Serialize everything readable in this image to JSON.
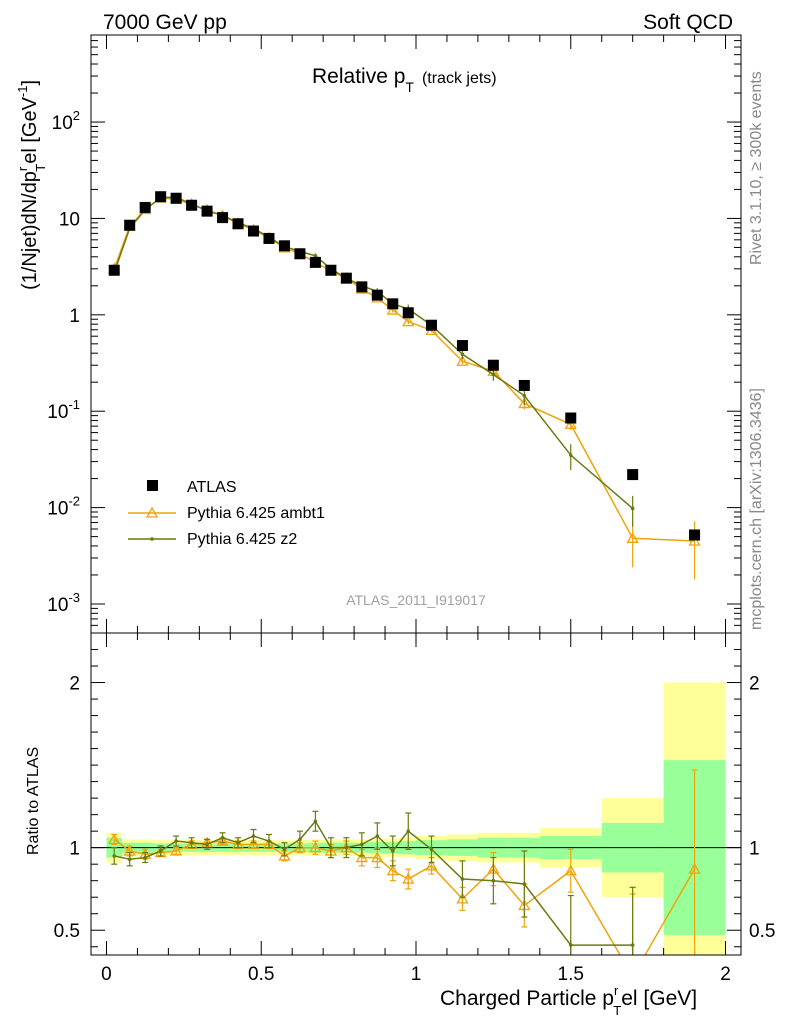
{
  "header": {
    "left": "7000 GeV pp",
    "right": "Soft QCD"
  },
  "side_labels": {
    "rivet": "Rivet 3.1.10, ≥ 300k events",
    "source": "mcplots.cern.ch [arXiv:1306.3436]"
  },
  "chart_data": {
    "type": "line",
    "title": "Relative p_T (track jets)",
    "title_main": "Relative p",
    "title_sub": "T",
    "title_note": "(track jets)",
    "analysis": "ATLAS_2011_I919017",
    "xlabel": "Charged Particle p_T^rel [GeV]",
    "xlabel_main": "Charged Particle p",
    "xlabel_sub": "T",
    "xlabel_sup": "r",
    "xlabel_tail": "el [GeV]",
    "ylabel": "(1/Njet)dN/dp_T^rel [GeV^-1]",
    "ylabel_main": "(1/Njet)dN/dp",
    "ylabel_sub": "T",
    "ylabel_sup": "r",
    "ylabel_tail": "el [GeV",
    "ylabel_exp": "-1",
    "ylabel_close": "]",
    "ratio_ylabel": "Ratio to ATLAS",
    "xlim": [
      -0.05,
      2.05
    ],
    "ylim": [
      0.0005,
      800
    ],
    "yscale": "log",
    "ratio_ylim": [
      0.35,
      2.3
    ],
    "x_ticks": [
      "0",
      "0.5",
      "1",
      "1.5",
      "2"
    ],
    "y_ticks": [
      {
        "base": "10",
        "exp": "-3"
      },
      {
        "base": "10",
        "exp": "-2"
      },
      {
        "base": "10",
        "exp": "-1"
      },
      {
        "base": "1",
        "exp": ""
      },
      {
        "base": "10",
        "exp": ""
      },
      {
        "base": "10",
        "exp": "2"
      }
    ],
    "ratio_ticks": [
      "0.5",
      "1",
      "2"
    ],
    "legend": {
      "position": "bottom-left",
      "entries": [
        "ATLAS",
        "Pythia 6.425 ambt1",
        "Pythia 6.425 z2"
      ]
    },
    "colors": {
      "atlas": "#000000",
      "ambt1": "#f0a30a",
      "z2": "#6b7a0e",
      "band_outer": "#ffff99",
      "band_inner": "#99ff99"
    },
    "atlas": {
      "name": "ATLAS",
      "x": [
        0.025,
        0.075,
        0.125,
        0.175,
        0.225,
        0.275,
        0.325,
        0.375,
        0.425,
        0.475,
        0.525,
        0.575,
        0.625,
        0.675,
        0.725,
        0.775,
        0.825,
        0.875,
        0.925,
        0.975,
        1.05,
        1.15,
        1.25,
        1.35,
        1.5,
        1.7,
        1.9
      ],
      "x_low": [
        0.0,
        0.05,
        0.1,
        0.15,
        0.2,
        0.25,
        0.3,
        0.35,
        0.4,
        0.45,
        0.5,
        0.55,
        0.6,
        0.65,
        0.7,
        0.75,
        0.8,
        0.85,
        0.9,
        0.95,
        1.0,
        1.1,
        1.2,
        1.3,
        1.4,
        1.6,
        1.8
      ],
      "x_high": [
        0.05,
        0.1,
        0.15,
        0.2,
        0.25,
        0.3,
        0.35,
        0.4,
        0.45,
        0.5,
        0.55,
        0.6,
        0.65,
        0.7,
        0.75,
        0.8,
        0.85,
        0.9,
        0.95,
        1.0,
        1.1,
        1.2,
        1.3,
        1.4,
        1.6,
        1.8,
        2.0
      ],
      "y": [
        2.9,
        8.5,
        13.0,
        16.8,
        16.2,
        13.7,
        11.9,
        10.2,
        8.8,
        7.4,
        6.2,
        5.2,
        4.3,
        3.5,
        2.9,
        2.4,
        1.95,
        1.6,
        1.3,
        1.05,
        0.78,
        0.48,
        0.3,
        0.185,
        0.085,
        0.022,
        0.0052
      ],
      "band_inner": [
        0.06,
        0.03,
        0.03,
        0.025,
        0.025,
        0.025,
        0.025,
        0.025,
        0.025,
        0.025,
        0.025,
        0.025,
        0.025,
        0.03,
        0.03,
        0.03,
        0.03,
        0.035,
        0.035,
        0.04,
        0.045,
        0.05,
        0.06,
        0.06,
        0.07,
        0.15,
        0.53
      ],
      "band_outer": [
        0.09,
        0.05,
        0.05,
        0.045,
        0.045,
        0.045,
        0.045,
        0.045,
        0.045,
        0.045,
        0.045,
        0.045,
        0.045,
        0.05,
        0.05,
        0.05,
        0.05,
        0.055,
        0.055,
        0.06,
        0.07,
        0.08,
        0.09,
        0.09,
        0.12,
        0.3,
        1.0
      ]
    },
    "series": [
      {
        "name": "Pythia 6.425 ambt1",
        "key": "ambt1",
        "marker": "triangle",
        "x": [
          0.025,
          0.075,
          0.125,
          0.175,
          0.225,
          0.275,
          0.325,
          0.375,
          0.425,
          0.475,
          0.525,
          0.575,
          0.625,
          0.675,
          0.725,
          0.775,
          0.825,
          0.875,
          0.925,
          0.975,
          1.05,
          1.15,
          1.25,
          1.35,
          1.5,
          1.7,
          1.9
        ],
        "y": [
          3.0,
          8.3,
          12.4,
          16.3,
          15.8,
          14.0,
          12.2,
          10.6,
          8.9,
          7.6,
          6.3,
          4.95,
          4.3,
          3.5,
          2.85,
          2.4,
          1.85,
          1.5,
          1.12,
          0.85,
          0.69,
          0.33,
          0.26,
          0.12,
          0.073,
          0.0048,
          0.0045
        ],
        "ratio": [
          1.05,
          0.98,
          0.96,
          0.97,
          0.98,
          1.02,
          1.03,
          1.04,
          1.02,
          1.02,
          1.02,
          0.95,
          1.0,
          1.0,
          0.98,
          1.0,
          0.94,
          0.94,
          0.86,
          0.81,
          0.89,
          0.69,
          0.87,
          0.65,
          0.86,
          0.22,
          0.87
        ],
        "ratio_err": [
          0.03,
          0.03,
          0.03,
          0.02,
          0.02,
          0.02,
          0.02,
          0.02,
          0.02,
          0.02,
          0.02,
          0.03,
          0.03,
          0.04,
          0.04,
          0.04,
          0.05,
          0.06,
          0.06,
          0.06,
          0.05,
          0.07,
          0.1,
          0.13,
          0.13,
          0.5,
          0.6
        ]
      },
      {
        "name": "Pythia 6.425 z2",
        "key": "z2",
        "marker": "dot",
        "x": [
          0.025,
          0.075,
          0.125,
          0.175,
          0.225,
          0.275,
          0.325,
          0.375,
          0.425,
          0.475,
          0.525,
          0.575,
          0.625,
          0.675,
          0.725,
          0.775,
          0.825,
          0.875,
          0.925,
          0.975,
          1.05,
          1.15,
          1.25,
          1.35,
          1.5,
          1.7
        ],
        "y": [
          2.75,
          7.9,
          12.3,
          16.5,
          16.6,
          14.1,
          12.0,
          10.8,
          9.0,
          7.9,
          6.4,
          5.1,
          4.55,
          4.1,
          3.0,
          2.4,
          2.0,
          1.75,
          1.3,
          1.15,
          0.78,
          0.39,
          0.24,
          0.145,
          0.035,
          0.0098
        ],
        "ratio": [
          0.95,
          0.93,
          0.94,
          0.98,
          1.04,
          1.03,
          1.02,
          1.06,
          1.03,
          1.07,
          1.04,
          0.99,
          1.05,
          1.16,
          1.0,
          1.0,
          1.02,
          1.07,
          0.98,
          1.1,
          0.99,
          0.81,
          0.8,
          0.78,
          0.41,
          0.41
        ],
        "ratio_err": [
          0.05,
          0.04,
          0.03,
          0.03,
          0.03,
          0.03,
          0.03,
          0.03,
          0.03,
          0.04,
          0.04,
          0.04,
          0.05,
          0.06,
          0.06,
          0.06,
          0.07,
          0.08,
          0.09,
          0.11,
          0.08,
          0.11,
          0.14,
          0.2,
          0.3,
          0.35
        ]
      }
    ]
  }
}
